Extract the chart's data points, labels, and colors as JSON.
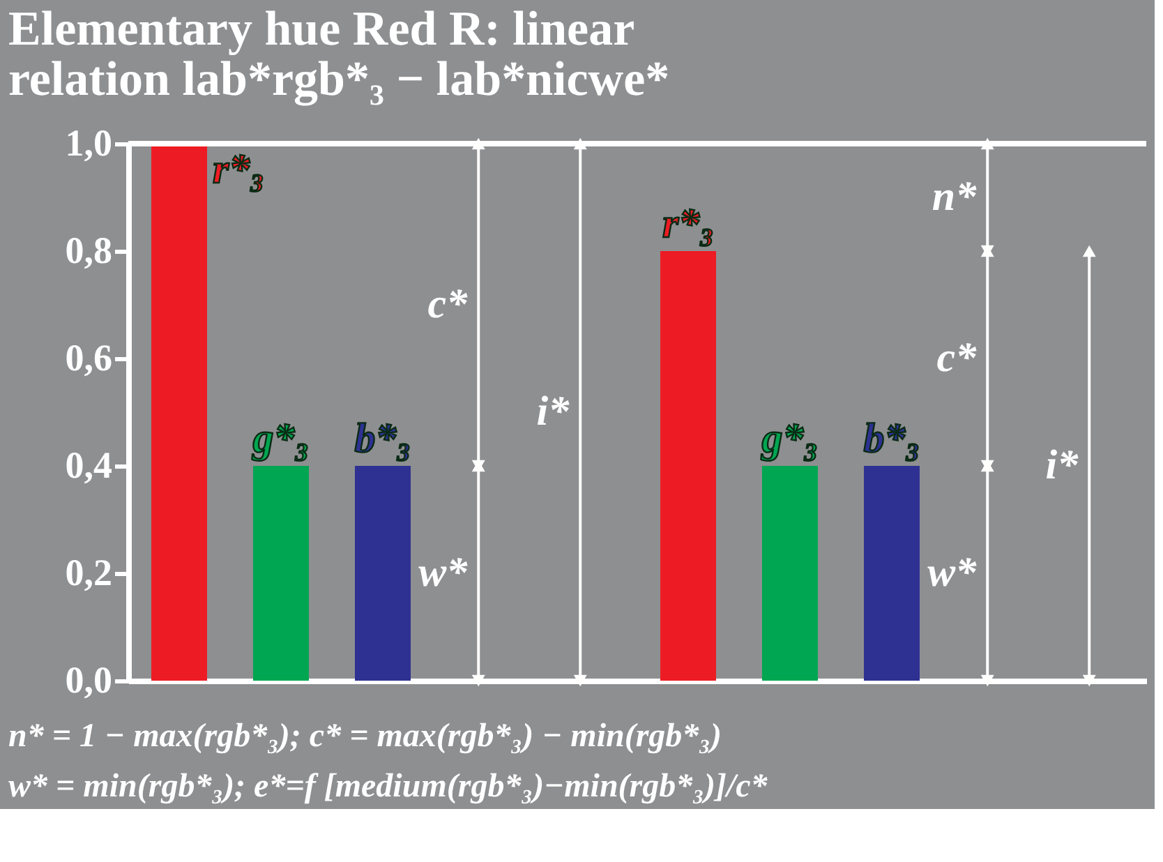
{
  "chart_data": {
    "type": "bar",
    "title": "Elementary hue Red R: linear\nrelation lab*rgb*₃ − lab*nicwe*",
    "categories": [
      null,
      null,
      null,
      null,
      null,
      null,
      null,
      null,
      null,
      null
    ],
    "series": [
      {
        "name": "r*₃",
        "color": "#ed1c24",
        "values": [
          1.0,
          null,
          null,
          null,
          null,
          0.8,
          null,
          null,
          null,
          null
        ]
      },
      {
        "name": "g*₃",
        "color": "#00a651",
        "values": [
          null,
          0.4,
          null,
          null,
          null,
          null,
          0.4,
          null,
          null,
          null
        ]
      },
      {
        "name": "b*₃",
        "color": "#2e3192",
        "values": [
          null,
          null,
          0.4,
          null,
          null,
          null,
          null,
          0.4,
          null,
          null
        ]
      }
    ],
    "ylim": [
      0,
      1
    ],
    "yticks": [
      {
        "value": 0,
        "label": "0,0"
      },
      {
        "value": 0.2,
        "label": "0,2"
      },
      {
        "value": 0.4,
        "label": "0,4"
      },
      {
        "value": 0.6,
        "label": "0,6"
      },
      {
        "value": 0.8,
        "label": "0,8"
      },
      {
        "value": 1,
        "label": "1,0"
      }
    ],
    "grid": false,
    "legend": false,
    "ref_lines": [
      {
        "axis": "y",
        "value": 1,
        "color": "#ffffff"
      }
    ],
    "annotations": [
      "c*",
      "w*",
      "i*",
      "n*",
      "c*",
      "w*",
      "i*",
      "n* = 1 − max(rgb*₃); c* = max(rgb*₃) − min(rgb*₃)",
      "w* = min(rgb*₃); e*=f [medium(rgb*₃)−min(rgb*₃)]/c*"
    ]
  }
}
